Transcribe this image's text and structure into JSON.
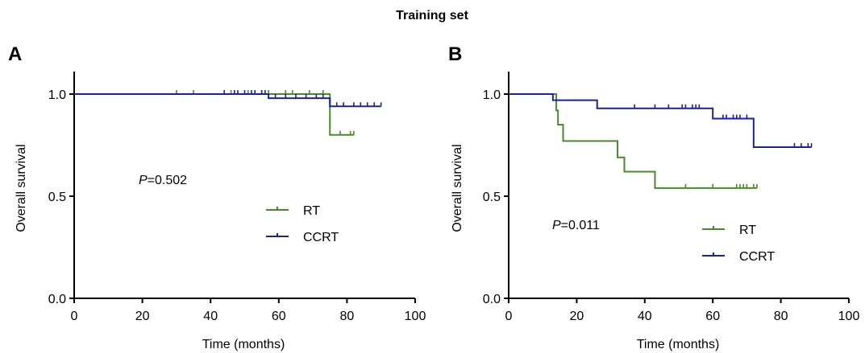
{
  "title": "Training set",
  "colors": {
    "RT": "#4a8a2a",
    "CCRT": "#1f1fa0",
    "axis": "#000000"
  },
  "chart_data": [
    {
      "panel": "A",
      "type": "line",
      "step": true,
      "xlabel": "Time (months)",
      "ylabel": "Overall survival",
      "xlim": [
        0,
        100
      ],
      "ylim": [
        0,
        1.0
      ],
      "xticks": [
        "0",
        "20",
        "40",
        "60",
        "80",
        "100"
      ],
      "yticks": [
        "0.0",
        "0.5",
        "1.0"
      ],
      "pvalue": {
        "prefix": "P",
        "value": "=0.502"
      },
      "legend": [
        "RT",
        "CCRT"
      ],
      "series": [
        {
          "name": "RT",
          "steps": [
            [
              0,
              1.0
            ],
            [
              75,
              0.8
            ]
          ],
          "end": 82,
          "censors": [
            [
              30,
              1.0
            ],
            [
              35,
              1.0
            ],
            [
              46,
              1.0
            ],
            [
              51,
              1.0
            ],
            [
              55,
              1.0
            ],
            [
              57,
              1.0
            ],
            [
              62,
              1.0
            ],
            [
              64,
              1.0
            ],
            [
              69,
              1.0
            ],
            [
              73,
              1.0
            ],
            [
              78,
              0.8
            ],
            [
              81,
              0.8
            ],
            [
              82,
              0.8
            ]
          ]
        },
        {
          "name": "CCRT",
          "steps": [
            [
              0,
              1.0
            ],
            [
              57,
              0.98
            ],
            [
              75,
              0.94
            ]
          ],
          "end": 90,
          "censors": [
            [
              44,
              1.0
            ],
            [
              47,
              1.0
            ],
            [
              48,
              1.0
            ],
            [
              50,
              1.0
            ],
            [
              52,
              1.0
            ],
            [
              53,
              1.0
            ],
            [
              55,
              1.0
            ],
            [
              56,
              1.0
            ],
            [
              59,
              0.98
            ],
            [
              62,
              0.98
            ],
            [
              65,
              0.98
            ],
            [
              68,
              0.98
            ],
            [
              71,
              0.98
            ],
            [
              73,
              0.98
            ],
            [
              77,
              0.94
            ],
            [
              79,
              0.94
            ],
            [
              82,
              0.94
            ],
            [
              84,
              0.94
            ],
            [
              86,
              0.94
            ],
            [
              88,
              0.94
            ],
            [
              90,
              0.94
            ]
          ]
        }
      ]
    },
    {
      "panel": "B",
      "type": "line",
      "step": true,
      "xlabel": "Time (months)",
      "ylabel": "Overall survival",
      "xlim": [
        0,
        100
      ],
      "ylim": [
        0,
        1.0
      ],
      "xticks": [
        "0",
        "20",
        "40",
        "60",
        "80",
        "100"
      ],
      "yticks": [
        "0.0",
        "0.5",
        "1.0"
      ],
      "pvalue": {
        "prefix": "P",
        "value": "=0.011"
      },
      "legend": [
        "RT",
        "CCRT"
      ],
      "series": [
        {
          "name": "RT",
          "steps": [
            [
              0,
              1.0
            ],
            [
              14,
              0.92
            ],
            [
              14.5,
              0.85
            ],
            [
              16,
              0.77
            ],
            [
              32,
              0.69
            ],
            [
              34,
              0.62
            ],
            [
              43,
              0.54
            ]
          ],
          "end": 73,
          "censors": [
            [
              52,
              0.54
            ],
            [
              60,
              0.54
            ],
            [
              67,
              0.54
            ],
            [
              68,
              0.54
            ],
            [
              69,
              0.54
            ],
            [
              70,
              0.54
            ],
            [
              72,
              0.54
            ],
            [
              73,
              0.54
            ]
          ]
        },
        {
          "name": "CCRT",
          "steps": [
            [
              0,
              1.0
            ],
            [
              13,
              0.97
            ],
            [
              26,
              0.93
            ],
            [
              60,
              0.88
            ],
            [
              72,
              0.74
            ]
          ],
          "end": 89,
          "censors": [
            [
              37,
              0.93
            ],
            [
              43,
              0.93
            ],
            [
              47,
              0.93
            ],
            [
              51,
              0.93
            ],
            [
              52,
              0.93
            ],
            [
              54,
              0.93
            ],
            [
              55,
              0.93
            ],
            [
              56,
              0.93
            ],
            [
              63,
              0.88
            ],
            [
              64,
              0.88
            ],
            [
              66,
              0.88
            ],
            [
              67,
              0.88
            ],
            [
              68,
              0.88
            ],
            [
              70,
              0.88
            ],
            [
              84,
              0.74
            ],
            [
              86,
              0.74
            ],
            [
              88,
              0.74
            ],
            [
              89,
              0.74
            ]
          ]
        }
      ]
    }
  ]
}
